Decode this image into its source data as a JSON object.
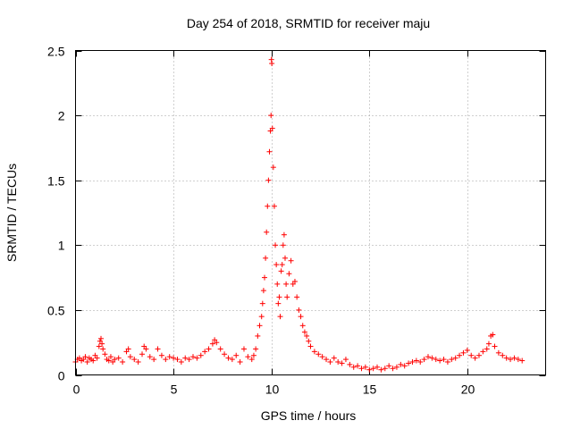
{
  "chart_data": {
    "type": "scatter",
    "title": "Day 254 of 2018, SRMTID for receiver maju",
    "xlabel": "GPS time / hours",
    "ylabel": "SRMTID / TECUs",
    "xlim": [
      0,
      24
    ],
    "ylim": [
      0,
      2.5
    ],
    "x_ticks": [
      0,
      5,
      10,
      15,
      20
    ],
    "x_tick_labels": [
      "0",
      "5",
      "10",
      "15",
      "20"
    ],
    "y_ticks": [
      0,
      0.5,
      1,
      1.5,
      2,
      2.5
    ],
    "y_tick_labels": [
      "0",
      "0.5",
      "1",
      "1.5",
      "2",
      "2.5"
    ],
    "grid": true,
    "marker": "+",
    "color": "#ff0000",
    "series": [
      {
        "name": "SRMTID",
        "points": [
          [
            0.0,
            0.1
          ],
          [
            0.1,
            0.12
          ],
          [
            0.2,
            0.13
          ],
          [
            0.3,
            0.11
          ],
          [
            0.4,
            0.12
          ],
          [
            0.5,
            0.14
          ],
          [
            0.6,
            0.1
          ],
          [
            0.7,
            0.13
          ],
          [
            0.8,
            0.12
          ],
          [
            0.9,
            0.11
          ],
          [
            1.0,
            0.15
          ],
          [
            1.1,
            0.13
          ],
          [
            1.2,
            0.22
          ],
          [
            1.25,
            0.26
          ],
          [
            1.3,
            0.28
          ],
          [
            1.35,
            0.24
          ],
          [
            1.4,
            0.2
          ],
          [
            1.5,
            0.16
          ],
          [
            1.6,
            0.12
          ],
          [
            1.7,
            0.11
          ],
          [
            1.8,
            0.14
          ],
          [
            1.9,
            0.1
          ],
          [
            2.0,
            0.12
          ],
          [
            2.2,
            0.13
          ],
          [
            2.4,
            0.1
          ],
          [
            2.6,
            0.18
          ],
          [
            2.7,
            0.2
          ],
          [
            2.8,
            0.14
          ],
          [
            3.0,
            0.12
          ],
          [
            3.2,
            0.1
          ],
          [
            3.4,
            0.16
          ],
          [
            3.5,
            0.22
          ],
          [
            3.6,
            0.2
          ],
          [
            3.8,
            0.14
          ],
          [
            4.0,
            0.12
          ],
          [
            4.2,
            0.2
          ],
          [
            4.4,
            0.15
          ],
          [
            4.6,
            0.12
          ],
          [
            4.8,
            0.14
          ],
          [
            5.0,
            0.13
          ],
          [
            5.2,
            0.12
          ],
          [
            5.4,
            0.1
          ],
          [
            5.6,
            0.13
          ],
          [
            5.8,
            0.12
          ],
          [
            6.0,
            0.14
          ],
          [
            6.2,
            0.13
          ],
          [
            6.4,
            0.15
          ],
          [
            6.6,
            0.18
          ],
          [
            6.8,
            0.2
          ],
          [
            7.0,
            0.24
          ],
          [
            7.1,
            0.27
          ],
          [
            7.2,
            0.25
          ],
          [
            7.4,
            0.2
          ],
          [
            7.6,
            0.16
          ],
          [
            7.8,
            0.13
          ],
          [
            8.0,
            0.12
          ],
          [
            8.2,
            0.15
          ],
          [
            8.4,
            0.1
          ],
          [
            8.6,
            0.2
          ],
          [
            8.8,
            0.14
          ],
          [
            9.0,
            0.12
          ],
          [
            9.1,
            0.15
          ],
          [
            9.2,
            0.2
          ],
          [
            9.3,
            0.3
          ],
          [
            9.4,
            0.38
          ],
          [
            9.5,
            0.45
          ],
          [
            9.55,
            0.55
          ],
          [
            9.6,
            0.65
          ],
          [
            9.65,
            0.75
          ],
          [
            9.7,
            0.9
          ],
          [
            9.75,
            1.1
          ],
          [
            9.8,
            1.3
          ],
          [
            9.85,
            1.5
          ],
          [
            9.9,
            1.72
          ],
          [
            9.95,
            1.88
          ],
          [
            9.98,
            2.0
          ],
          [
            10.0,
            2.43
          ],
          [
            10.02,
            2.4
          ],
          [
            10.05,
            1.9
          ],
          [
            10.1,
            1.6
          ],
          [
            10.15,
            1.3
          ],
          [
            10.2,
            1.0
          ],
          [
            10.25,
            0.85
          ],
          [
            10.3,
            0.7
          ],
          [
            10.35,
            0.55
          ],
          [
            10.4,
            0.6
          ],
          [
            10.45,
            0.45
          ],
          [
            10.5,
            0.8
          ],
          [
            10.55,
            0.85
          ],
          [
            10.6,
            1.0
          ],
          [
            10.65,
            1.08
          ],
          [
            10.7,
            0.9
          ],
          [
            10.75,
            0.7
          ],
          [
            10.8,
            0.6
          ],
          [
            10.9,
            0.78
          ],
          [
            11.0,
            0.88
          ],
          [
            11.1,
            0.7
          ],
          [
            11.2,
            0.72
          ],
          [
            11.3,
            0.6
          ],
          [
            11.4,
            0.5
          ],
          [
            11.5,
            0.45
          ],
          [
            11.6,
            0.38
          ],
          [
            11.7,
            0.33
          ],
          [
            11.8,
            0.3
          ],
          [
            11.9,
            0.26
          ],
          [
            12.0,
            0.22
          ],
          [
            12.2,
            0.18
          ],
          [
            12.4,
            0.16
          ],
          [
            12.6,
            0.14
          ],
          [
            12.8,
            0.12
          ],
          [
            13.0,
            0.1
          ],
          [
            13.2,
            0.13
          ],
          [
            13.4,
            0.1
          ],
          [
            13.6,
            0.09
          ],
          [
            13.8,
            0.12
          ],
          [
            14.0,
            0.08
          ],
          [
            14.2,
            0.06
          ],
          [
            14.4,
            0.07
          ],
          [
            14.6,
            0.05
          ],
          [
            14.8,
            0.06
          ],
          [
            15.0,
            0.04
          ],
          [
            15.2,
            0.05
          ],
          [
            15.4,
            0.06
          ],
          [
            15.6,
            0.04
          ],
          [
            15.8,
            0.05
          ],
          [
            16.0,
            0.07
          ],
          [
            16.2,
            0.05
          ],
          [
            16.4,
            0.06
          ],
          [
            16.6,
            0.08
          ],
          [
            16.8,
            0.07
          ],
          [
            17.0,
            0.09
          ],
          [
            17.2,
            0.1
          ],
          [
            17.4,
            0.11
          ],
          [
            17.6,
            0.1
          ],
          [
            17.8,
            0.12
          ],
          [
            18.0,
            0.14
          ],
          [
            18.2,
            0.13
          ],
          [
            18.4,
            0.12
          ],
          [
            18.6,
            0.11
          ],
          [
            18.8,
            0.12
          ],
          [
            19.0,
            0.1
          ],
          [
            19.2,
            0.12
          ],
          [
            19.4,
            0.13
          ],
          [
            19.6,
            0.15
          ],
          [
            19.8,
            0.17
          ],
          [
            20.0,
            0.19
          ],
          [
            20.2,
            0.15
          ],
          [
            20.4,
            0.13
          ],
          [
            20.6,
            0.15
          ],
          [
            20.8,
            0.18
          ],
          [
            21.0,
            0.2
          ],
          [
            21.1,
            0.24
          ],
          [
            21.2,
            0.3
          ],
          [
            21.3,
            0.31
          ],
          [
            21.4,
            0.22
          ],
          [
            21.6,
            0.17
          ],
          [
            21.8,
            0.15
          ],
          [
            22.0,
            0.13
          ],
          [
            22.2,
            0.12
          ],
          [
            22.4,
            0.13
          ],
          [
            22.6,
            0.12
          ],
          [
            22.8,
            0.11
          ]
        ]
      }
    ]
  }
}
